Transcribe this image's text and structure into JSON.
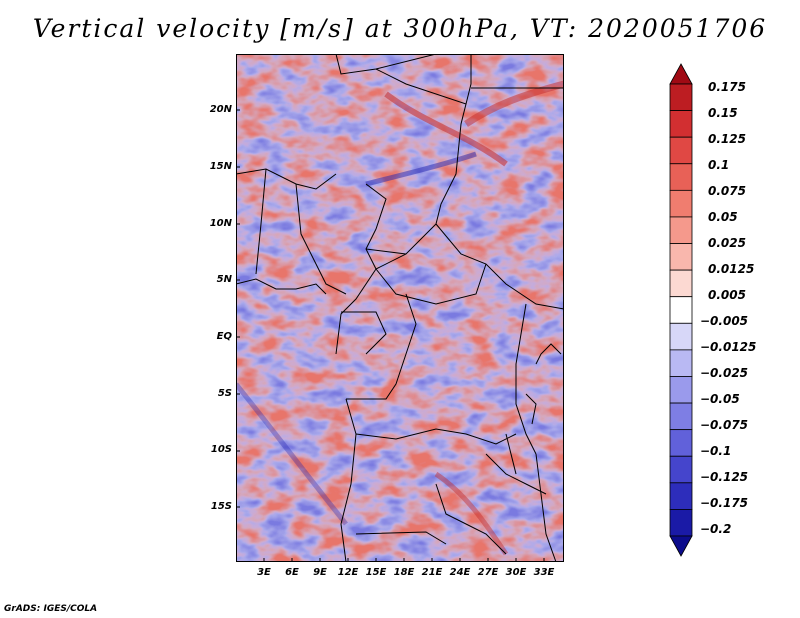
{
  "title": "Vertical velocity [m/s] at 300hPa, VT: 2020051706",
  "credit": "GrADS: IGES/COLA",
  "map": {
    "lat_labels": [
      "20N",
      "15N",
      "10N",
      "5N",
      "EQ",
      "5S",
      "10S",
      "15S"
    ],
    "lon_labels": [
      "3E",
      "6E",
      "9E",
      "12E",
      "15E",
      "18E",
      "21E",
      "24E",
      "27E",
      "30E",
      "33E"
    ],
    "lat_range": [
      -20,
      24
    ],
    "lon_range": [
      0,
      35
    ]
  },
  "colorbar": {
    "levels": [
      "0.175",
      "0.15",
      "0.125",
      "0.1",
      "0.075",
      "0.05",
      "0.025",
      "0.0125",
      "0.005",
      "−0.005",
      "−0.0125",
      "−0.025",
      "−0.05",
      "−0.075",
      "−0.1",
      "−0.125",
      "−0.175",
      "−0.2"
    ],
    "colors": [
      "#a00a14",
      "#bd1d22",
      "#d22f31",
      "#e04844",
      "#e86157",
      "#f07d6f",
      "#f5998c",
      "#f9b7ad",
      "#fcd9d2",
      "#ffffff",
      "#d7d7f8",
      "#b9b9f3",
      "#9a9aec",
      "#7e7ee4",
      "#6161da",
      "#4545cc",
      "#2d2dbb",
      "#1a1aa6",
      "#0c0c8c"
    ]
  }
}
